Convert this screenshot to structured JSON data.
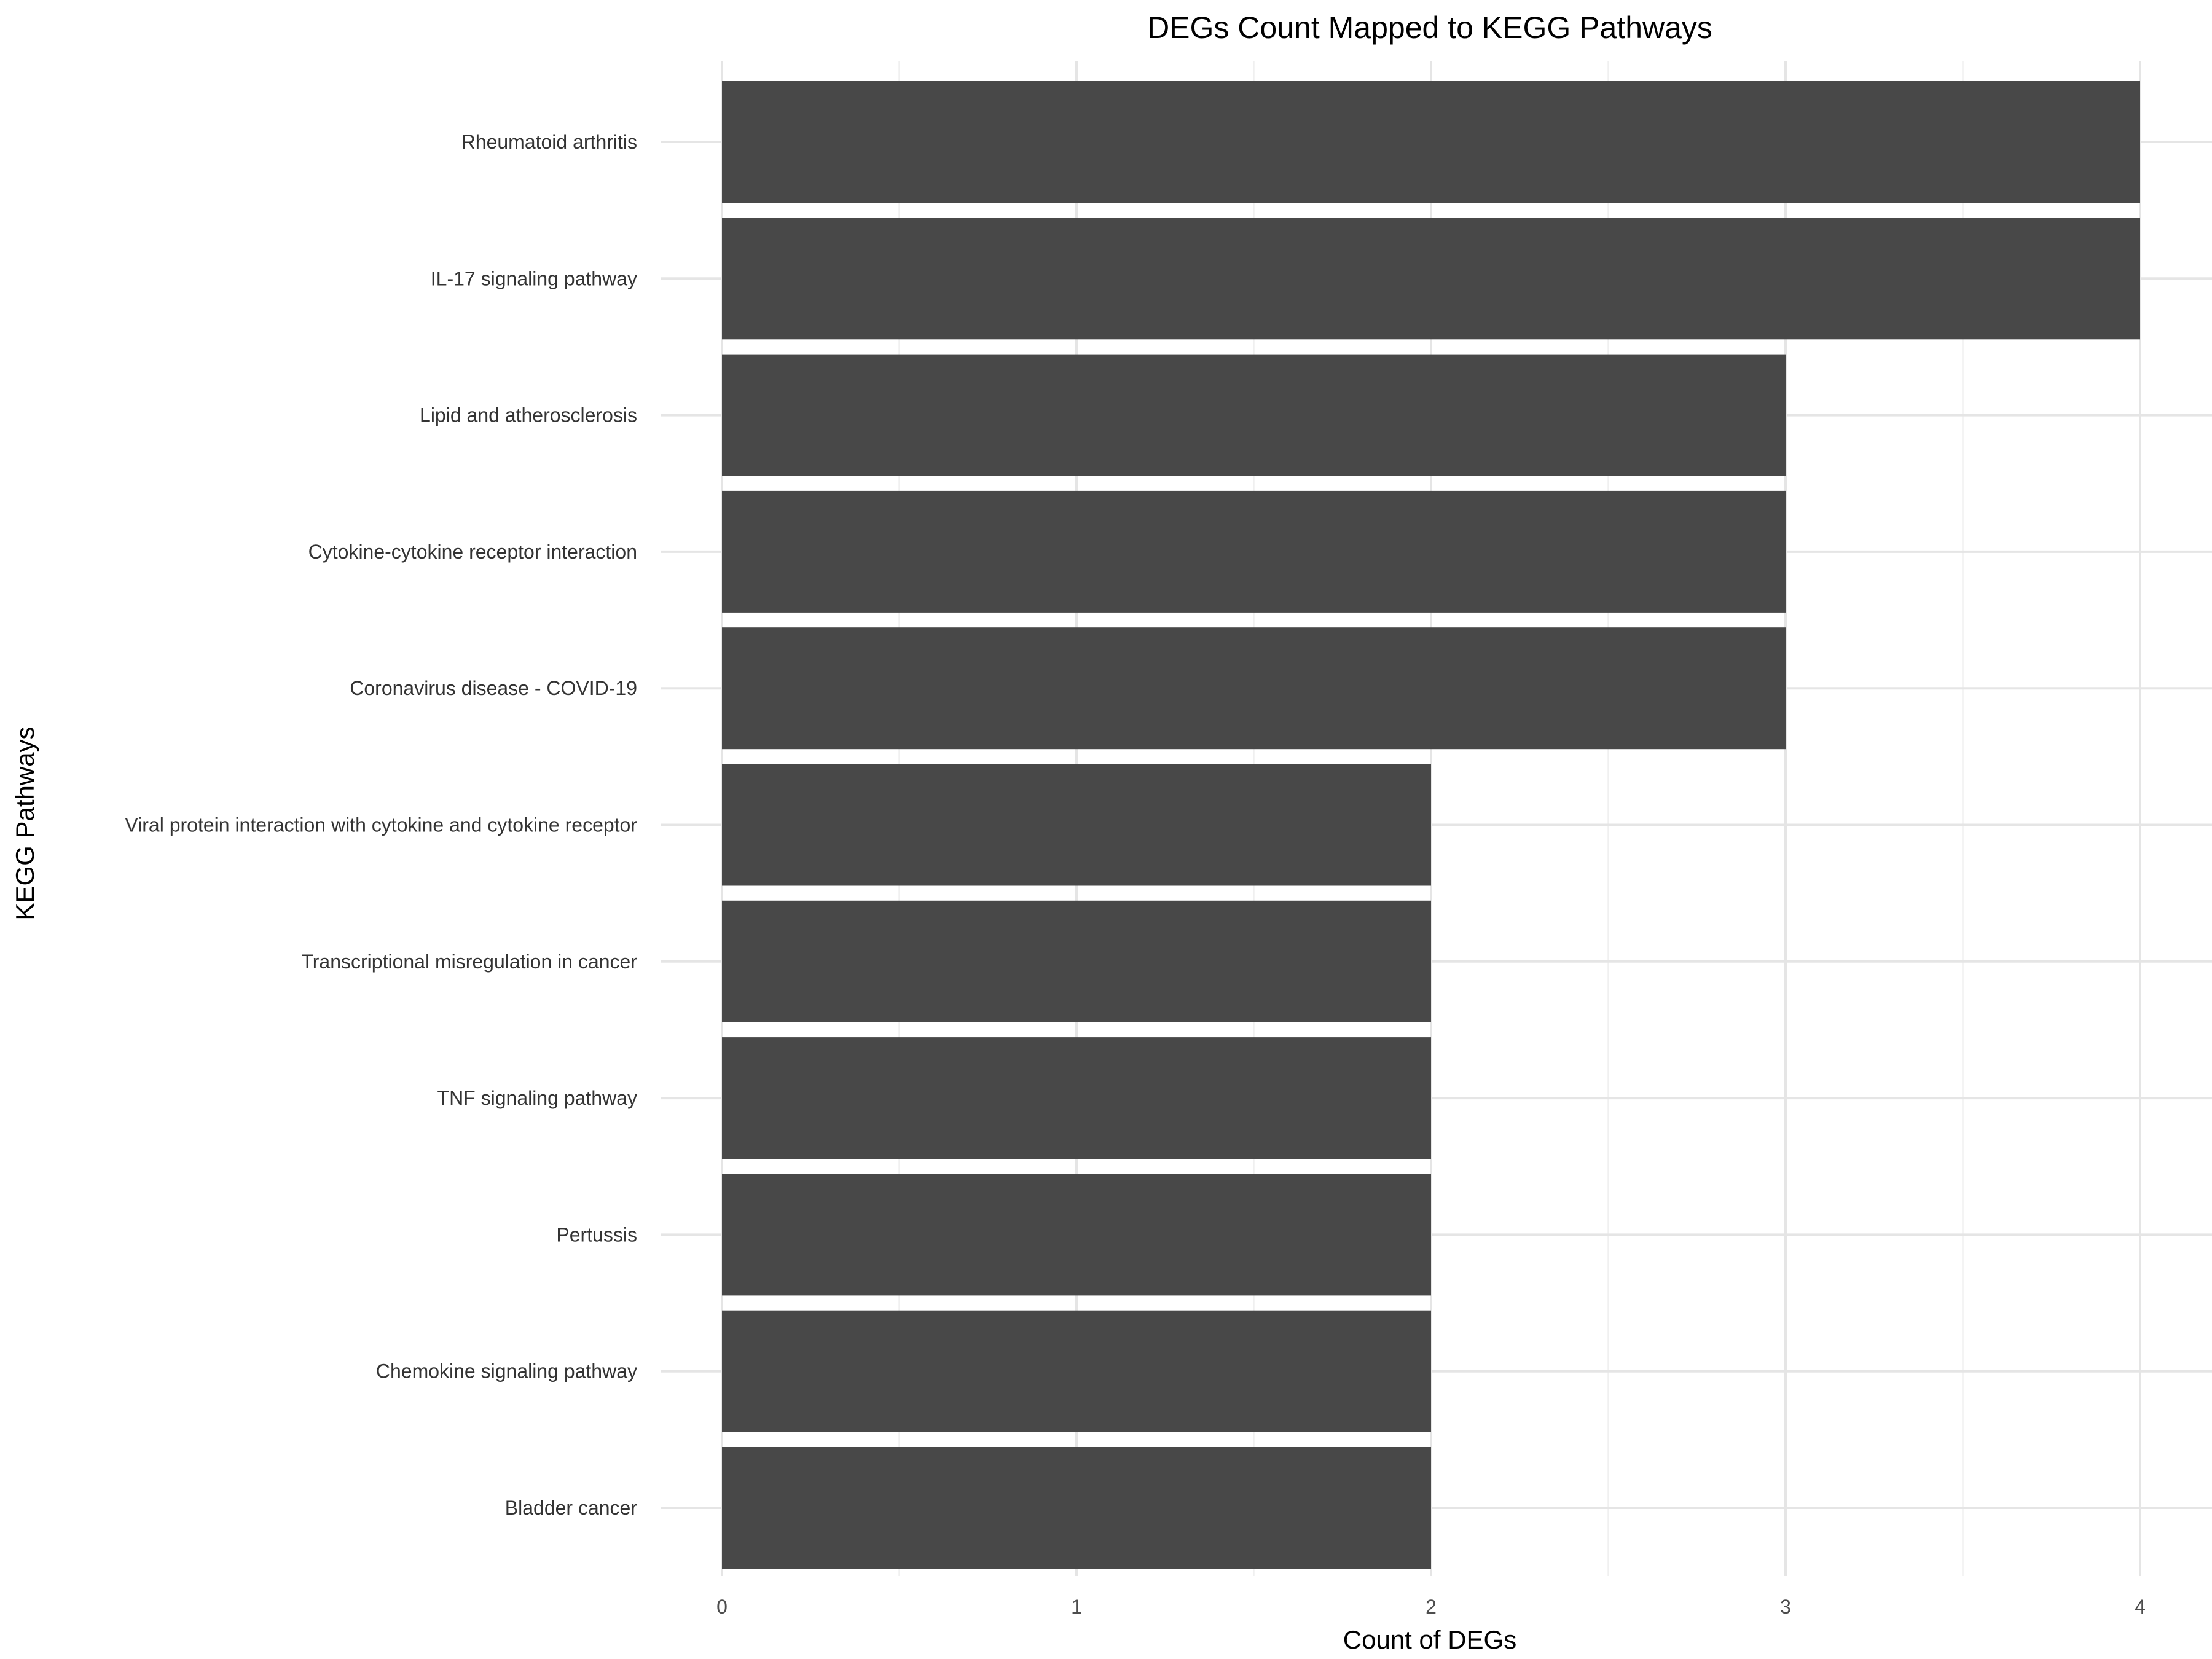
{
  "chart_data": {
    "type": "bar",
    "orientation": "horizontal",
    "title": "DEGs Count Mapped to KEGG Pathways",
    "xlabel": "Count of DEGs",
    "ylabel": "KEGG Pathways",
    "xlim": [
      0,
      4.2
    ],
    "x_ticks": [
      0,
      1,
      2,
      3,
      4
    ],
    "grid": true,
    "bar_color": "#484848",
    "categories": [
      "Rheumatoid arthritis",
      "IL-17 signaling pathway",
      "Lipid and atherosclerosis",
      "Cytokine-cytokine receptor interaction",
      "Coronavirus disease - COVID-19",
      "Viral protein interaction with cytokine and cytokine receptor",
      "Transcriptional misregulation in cancer",
      "TNF signaling pathway",
      "Pertussis",
      "Chemokine signaling pathway",
      "Bladder cancer"
    ],
    "values": [
      4,
      4,
      3,
      3,
      3,
      2,
      2,
      2,
      2,
      2,
      2
    ]
  }
}
